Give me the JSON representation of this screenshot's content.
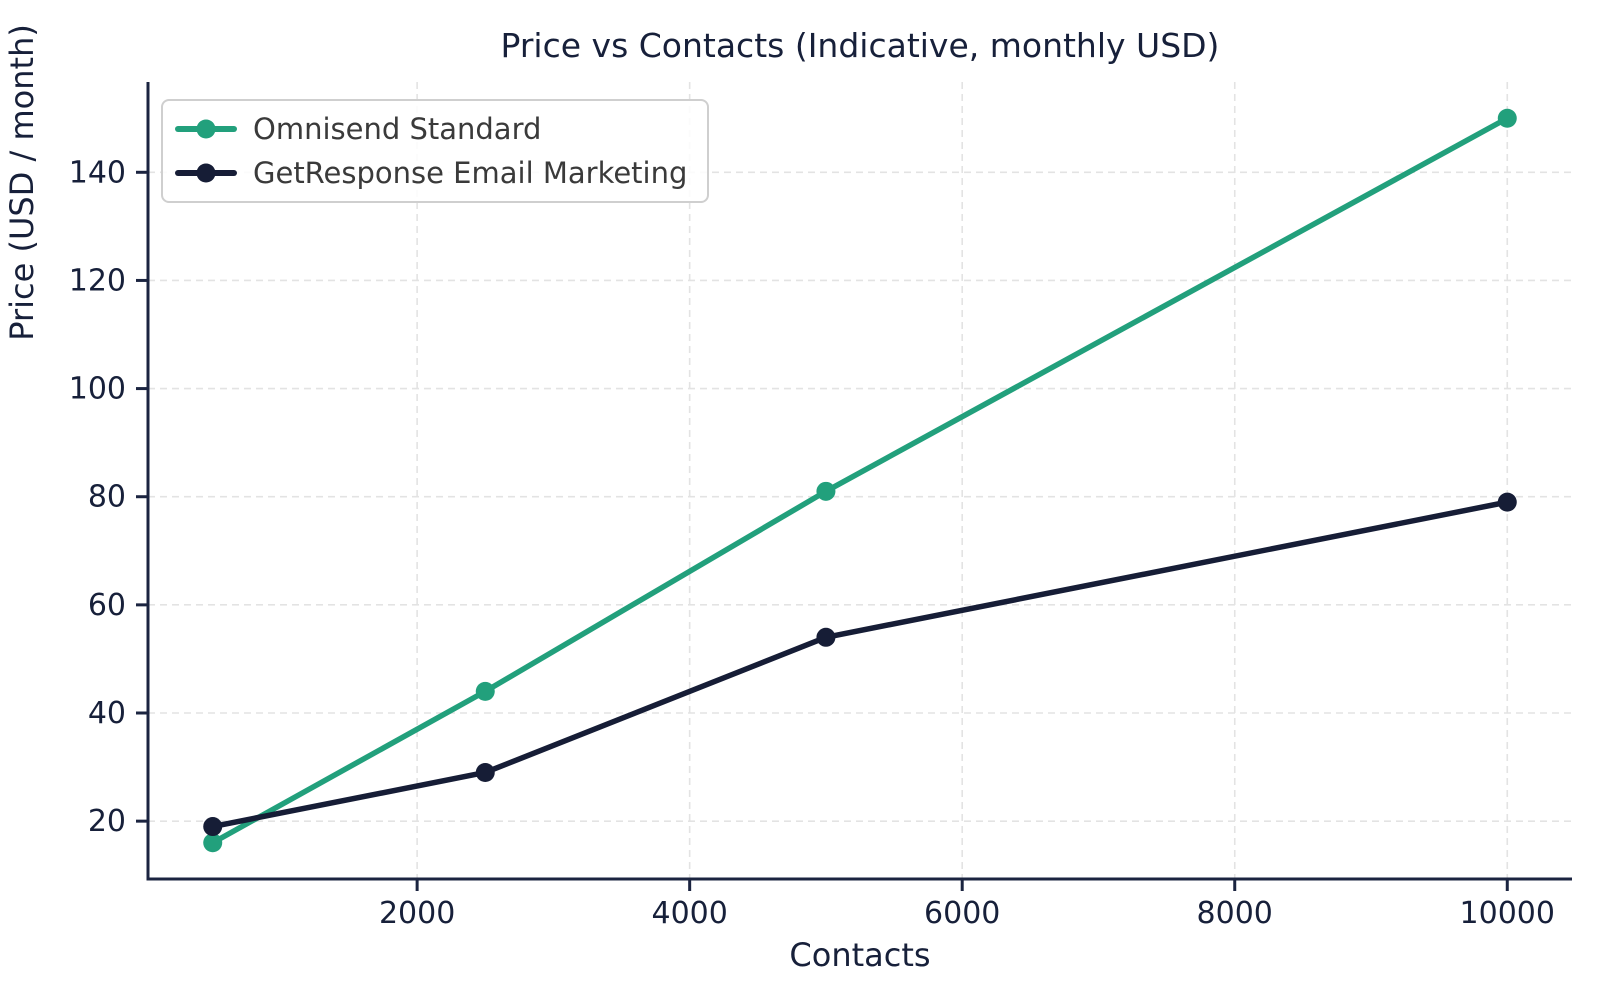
{
  "title": "Price vs Contacts (Indicative, monthly USD)",
  "colors": {
    "series_green": "#22a07c",
    "series_navy": "#161d36",
    "axis_text": "#17203a",
    "spine": "#1b2440",
    "grid": "#e3e3e3",
    "legend_border": "#cfcfcf",
    "legend_text": "#3a3a3a",
    "background": "#ffffff"
  },
  "legend": {
    "entries": [
      {
        "label": "Omnisend Standard"
      },
      {
        "label": "GetResponse Email Marketing"
      }
    ]
  },
  "chart_data": {
    "type": "line",
    "title": "Price vs Contacts (Indicative, monthly USD)",
    "xlabel": "Contacts",
    "ylabel": "Price (USD / month)",
    "x": [
      500,
      2500,
      5000,
      10000
    ],
    "series": [
      {
        "name": "Omnisend Standard",
        "color": "#22a07c",
        "values": [
          16,
          44,
          81,
          150
        ]
      },
      {
        "name": "GetResponse Email Marketing",
        "color": "#161d36",
        "values": [
          19,
          29,
          54,
          79
        ]
      }
    ],
    "xlim": [
      25,
      10475
    ],
    "ylim": [
      9.3,
      156.7
    ],
    "xticks": [
      2000,
      4000,
      6000,
      8000,
      10000
    ],
    "yticks": [
      20,
      40,
      60,
      80,
      100,
      120,
      140
    ],
    "grid": true,
    "legend_position": "upper left",
    "marker": "circle"
  }
}
